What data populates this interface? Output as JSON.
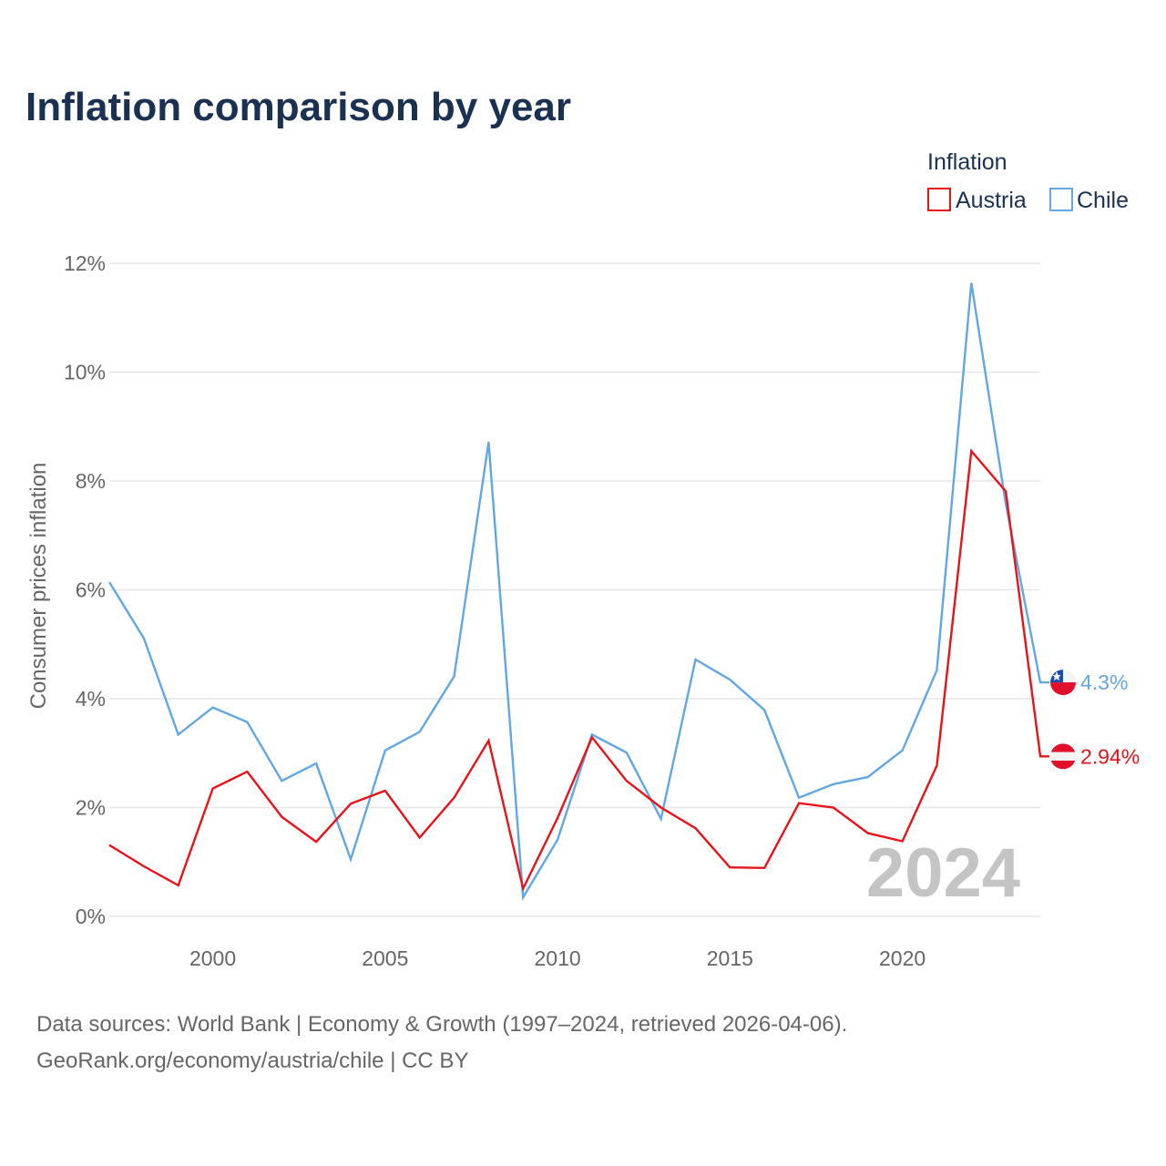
{
  "colors": {
    "austria": "#e8131a",
    "chile": "#63a6e4",
    "title": "#1b3151",
    "axis_text": "#666666",
    "year_watermark": "#c4c4c4"
  },
  "chart_data": {
    "type": "line",
    "title": "Inflation comparison by year",
    "legend_title": "Inflation",
    "legend_position": "top-right",
    "ylabel": "Consumer prices inflation",
    "xlabel": "",
    "xlim": [
      1997,
      2024
    ],
    "ylim": [
      0,
      12
    ],
    "x_ticks": [
      2000,
      2005,
      2010,
      2015,
      2020
    ],
    "y_ticks": [
      0,
      2,
      4,
      6,
      8,
      10,
      12
    ],
    "y_tick_labels": [
      "0%",
      "2%",
      "4%",
      "6%",
      "8%",
      "10%",
      "12%"
    ],
    "grid": true,
    "year_watermark": "2024",
    "x": [
      1997,
      1998,
      1999,
      2000,
      2001,
      2002,
      2003,
      2004,
      2005,
      2006,
      2007,
      2008,
      2009,
      2010,
      2011,
      2012,
      2013,
      2014,
      2015,
      2016,
      2017,
      2018,
      2019,
      2020,
      2021,
      2022,
      2023,
      2024
    ],
    "series": [
      {
        "name": "Austria",
        "color": "#e8131a",
        "flag_icon": "austria-flag-icon",
        "end_label": "2.94%",
        "values": [
          1.31,
          0.92,
          0.57,
          2.35,
          2.66,
          1.83,
          1.37,
          2.07,
          2.31,
          1.45,
          2.18,
          3.23,
          0.51,
          1.81,
          3.29,
          2.49,
          2.0,
          1.62,
          0.9,
          0.89,
          2.08,
          2.0,
          1.53,
          1.38,
          2.77,
          8.55,
          7.81,
          2.94
        ]
      },
      {
        "name": "Chile",
        "color": "#63a6e4",
        "flag_icon": "chile-flag-icon",
        "end_label": "4.3%",
        "values": [
          6.14,
          5.11,
          3.34,
          3.84,
          3.57,
          2.49,
          2.81,
          1.05,
          3.05,
          3.39,
          4.41,
          8.72,
          0.35,
          1.41,
          3.34,
          3.01,
          1.79,
          4.72,
          4.35,
          3.79,
          2.18,
          2.43,
          2.56,
          3.05,
          4.52,
          11.64,
          7.58,
          4.3
        ]
      }
    ]
  },
  "source": {
    "line1": "Data sources: World Bank | Economy & Growth (1997–2024, retrieved 2026-04-06).",
    "line2": "GeoRank.org/economy/austria/chile | CC BY"
  }
}
